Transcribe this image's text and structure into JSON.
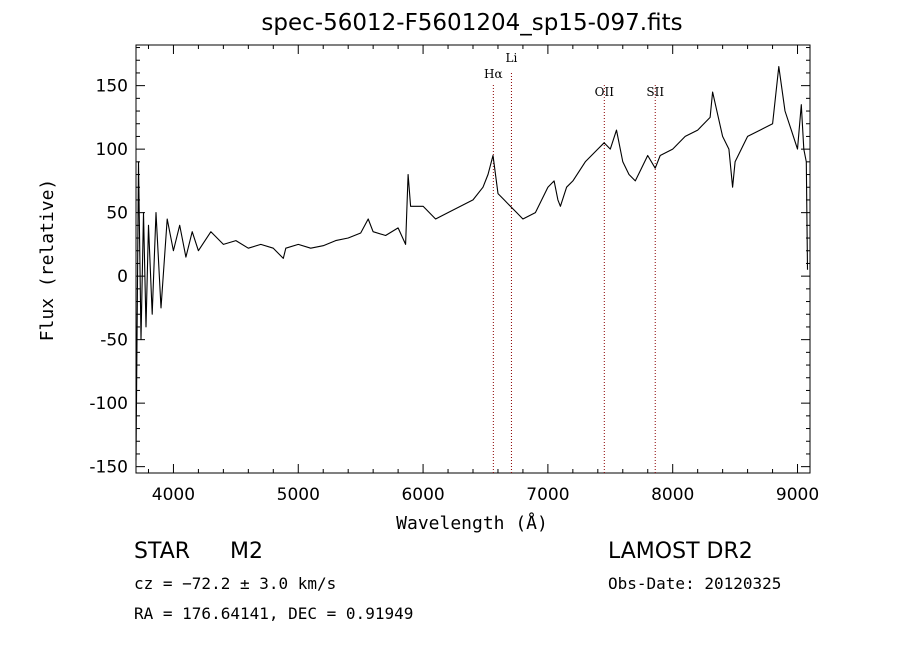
{
  "chart_data": {
    "type": "line",
    "title": "spec-56012-F5601204_sp15-097.fits",
    "xlabel": "Wavelength (Å)",
    "ylabel": "Flux (relative)",
    "xlim": [
      3700,
      9100
    ],
    "ylim": [
      -155,
      182
    ],
    "xticks": [
      4000,
      5000,
      6000,
      7000,
      8000,
      9000
    ],
    "yticks": [
      -150,
      -100,
      -50,
      0,
      50,
      100,
      150
    ],
    "grid": false,
    "line_color": "#000000",
    "marker_color": "#8b0000",
    "spectral_lines": [
      {
        "label": "Hα",
        "x": 6563
      },
      {
        "label": "Li",
        "x": 6708
      },
      {
        "label": "OII",
        "x": 7452
      },
      {
        "label": "SII",
        "x": 7860
      }
    ],
    "series": [
      {
        "x": [
          3700,
          3720,
          3740,
          3760,
          3780,
          3800,
          3830,
          3860,
          3900,
          3950,
          4000,
          4050,
          4100,
          4150,
          4200,
          4300,
          4400,
          4500,
          4600,
          4700,
          4800,
          4880,
          4900,
          5000,
          5100,
          5200,
          5300,
          5400,
          5500,
          5560,
          5600,
          5700,
          5800,
          5860,
          5880,
          5900,
          6000,
          6100,
          6200,
          6300,
          6400,
          6480,
          6520,
          6560,
          6600,
          6650,
          6700,
          6750,
          6800,
          6900,
          7000,
          7050,
          7080,
          7100,
          7150,
          7200,
          7300,
          7400,
          7450,
          7500,
          7550,
          7600,
          7650,
          7700,
          7750,
          7800,
          7860,
          7900,
          8000,
          8100,
          8200,
          8300,
          8320,
          8400,
          8450,
          8480,
          8500,
          8600,
          8700,
          8800,
          8850,
          8900,
          8950,
          9000,
          9030,
          9050,
          9070,
          9080
        ],
        "y": [
          -145,
          90,
          -50,
          50,
          -40,
          40,
          -30,
          50,
          -25,
          45,
          20,
          40,
          15,
          35,
          20,
          35,
          25,
          28,
          22,
          25,
          22,
          14,
          22,
          25,
          22,
          24,
          28,
          30,
          34,
          45,
          35,
          32,
          38,
          25,
          80,
          55,
          55,
          45,
          50,
          55,
          60,
          70,
          80,
          95,
          65,
          60,
          55,
          50,
          45,
          50,
          70,
          75,
          60,
          55,
          70,
          75,
          90,
          100,
          105,
          100,
          115,
          90,
          80,
          75,
          85,
          95,
          85,
          95,
          100,
          110,
          115,
          125,
          145,
          110,
          100,
          70,
          90,
          110,
          115,
          120,
          165,
          130,
          115,
          100,
          135,
          100,
          90,
          5
        ]
      }
    ]
  },
  "info": {
    "star": "STAR",
    "subclass": "M2",
    "cz": "cz = −72.2 ± 3.0 km/s",
    "radec": "RA = 176.64141, DEC =   0.91949",
    "survey": "LAMOST DR2",
    "obs_date": "Obs-Date: 20120325"
  }
}
